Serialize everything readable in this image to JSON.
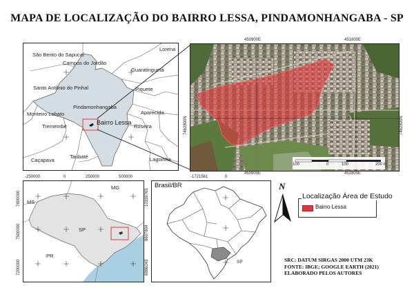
{
  "map": {
    "title": "MAPA DE LOCALIZAÇÃO DO BAIRRO LESSA, PINDAMONHANGABA - SP",
    "municipality_map": {
      "places": [
        "São Bento do Sapucaí",
        "Campos do Jordão",
        "Lorena",
        "Guaratinguetá",
        "Santo Antônio do Pinhal",
        "Piquete",
        "Pindamonhangaba",
        "Aparecida",
        "Monteiro Lobato",
        "Bairro Lessa",
        "Roseira",
        "Tremembé",
        "Taubaté",
        "Caçapava",
        "Lagoinha"
      ],
      "colors": {
        "highlight": "#d3dde3",
        "study": "#111111",
        "frame": "#e53935"
      }
    },
    "satellite": {
      "x_ticks": [
        "450900E",
        "451800E"
      ],
      "x_ticks_bottom": [
        "450900E",
        "451800E"
      ],
      "y_ticks": [
        "7462800N",
        "7462800N"
      ],
      "scale_labels": [
        "100",
        "0",
        "100",
        "200 m"
      ]
    },
    "state_map": {
      "x_ticks": [
        "-250000",
        "0",
        "250000",
        "500000"
      ],
      "y_ticks": [
        "7800000",
        "7500000",
        "7200000"
      ],
      "labels": [
        "MS",
        "MG",
        "SP",
        "PR"
      ],
      "colors": {
        "ocean": "#a9cfe3",
        "sp": "#e3e3e3",
        "neighbors": "#ffffff"
      }
    },
    "brazil_map": {
      "label": "Brasil/BR",
      "x_ticks": [
        "-1721561",
        "0"
      ],
      "y_ticks": [
        "10339765",
        "8607804",
        "6886243"
      ],
      "sp_label": "SP",
      "colors": {
        "sp": "#8a8a8a",
        "states": "#ffffff"
      }
    },
    "legend": {
      "title": "Localização Área de Estudo",
      "item": "Bairro Lessa",
      "color": "#d9393f"
    },
    "north_label": "N",
    "credits": [
      "SRC: DATUM SIRGAS 2000 UTM 23K",
      "FONTE: IBGE; GOOGLE EARTH (2021)",
      "ELABORADO PELOS AUTORES"
    ]
  }
}
